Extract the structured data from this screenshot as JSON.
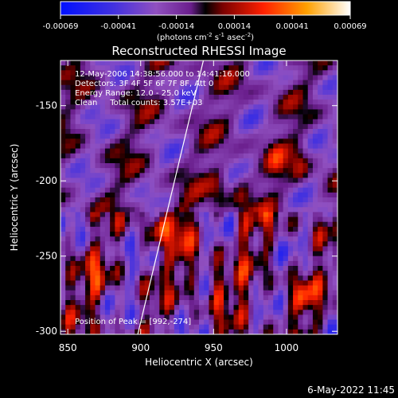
{
  "chart_data": {
    "type": "heatmap",
    "title": "Reconstructed RHESSI Image",
    "xlabel": "Heliocentric X (arcsec)",
    "ylabel": "Heliocentric Y (arcsec)",
    "xlim": [
      845,
      1035
    ],
    "ylim": [
      -302,
      -120
    ],
    "x_ticks": [
      850,
      900,
      950,
      1000
    ],
    "y_ticks": [
      -150,
      -200,
      -250,
      -300
    ],
    "colorbar": {
      "range": [
        -0.00069,
        0.00069
      ],
      "ticks": [
        "-0.00069",
        "-0.00041",
        "-0.00014",
        "0.00014",
        "0.00041",
        "0.00069"
      ],
      "unit_prefix": "(photons cm",
      "unit_sup1": "-2",
      "unit_mid1": " s",
      "unit_sup2": "-1",
      "unit_mid2": " asec",
      "unit_sup3": "-2",
      "unit_suffix": ")",
      "colormap": "rainbow-blue-to-red-to-white"
    },
    "annotations": {
      "time": "12-May-2006 14:38:56.000 to 14:41:16.000",
      "detectors": "Detectors: 3F 4F 5F 6F 7F 8F, Att 0",
      "energy": "Energy Range: 12.0 - 25.0 keV",
      "clean": "Clean     Total counts: 3.57E+03",
      "peak": "Position of Peak = [992,-274]"
    },
    "peak": [
      992,
      -274
    ],
    "limb_line": [
      [
        898,
        -302
      ],
      [
        943,
        -120
      ]
    ],
    "date_stamp": "6-May-2022 11:45"
  }
}
